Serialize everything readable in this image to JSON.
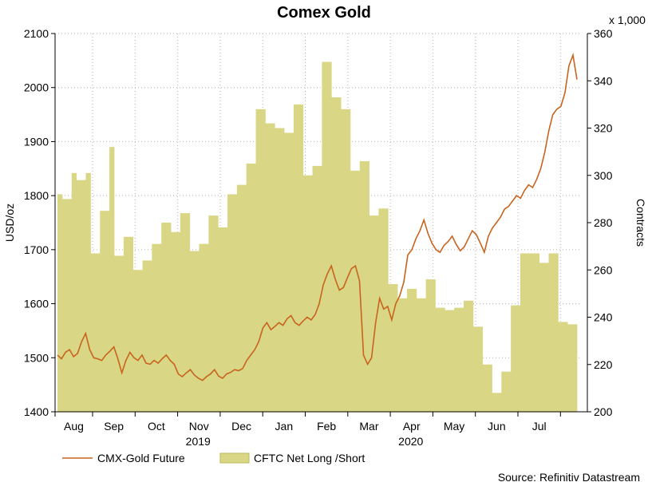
{
  "chart_data": {
    "type": "bar+line",
    "title": "Comex Gold",
    "source": "Source: Refinitiv Datastream",
    "y_left": {
      "label": "USD/oz",
      "ticks": [
        "1400",
        "1500",
        "1600",
        "1700",
        "1800",
        "1900",
        "2000",
        "2100"
      ],
      "range": [
        1400,
        2100
      ]
    },
    "y_right": {
      "label": "Contracts",
      "multiplier": "x 1,000",
      "ticks": [
        "200",
        "220",
        "240",
        "260",
        "280",
        "300",
        "320",
        "340",
        "360"
      ],
      "range": [
        200,
        360
      ]
    },
    "x": {
      "months": [
        "Aug",
        "Sep",
        "Oct",
        "Nov",
        "Dec",
        "Jan",
        "Feb",
        "Mar",
        "Apr",
        "May",
        "Jun",
        "Jul"
      ],
      "years": [
        "2019",
        "2020"
      ]
    },
    "legend": [
      "CMX-Gold Future",
      "CFTC Net Long /Short"
    ],
    "colors": {
      "line": "#c8641e",
      "bars": "#d9d685",
      "bars_edge": "#bdb95a",
      "grid": "#b4b4b4"
    },
    "series": [
      {
        "name": "CFTC Net Long /Short",
        "type": "bar",
        "axis": "right",
        "values": [
          292,
          290,
          290,
          301,
          298,
          298,
          301,
          267,
          267,
          285,
          285,
          312,
          266,
          266,
          274,
          274,
          260,
          260,
          264,
          264,
          271,
          271,
          280,
          280,
          276,
          276,
          284,
          284,
          268,
          268,
          271,
          271,
          283,
          283,
          278,
          278,
          292,
          292,
          296,
          296,
          305,
          305,
          328,
          328,
          322,
          322,
          320,
          320,
          318,
          318,
          330,
          330,
          300,
          300,
          304,
          304,
          348,
          348,
          333,
          333,
          328,
          328,
          302,
          302,
          306,
          306,
          283,
          283,
          286,
          286,
          254,
          254,
          248,
          248,
          252,
          252,
          248,
          248,
          256,
          256,
          244,
          244,
          243,
          243,
          244,
          244,
          247,
          247,
          236,
          236,
          220,
          220,
          208,
          208,
          217,
          217,
          245,
          245,
          267,
          267,
          267,
          267,
          263,
          263,
          267,
          267,
          238,
          238,
          237,
          237
        ]
      },
      {
        "name": "CMX-Gold Future",
        "type": "line",
        "axis": "left",
        "values": [
          1505,
          1498,
          1510,
          1515,
          1502,
          1508,
          1530,
          1545,
          1515,
          1500,
          1498,
          1495,
          1505,
          1512,
          1520,
          1498,
          1472,
          1495,
          1510,
          1500,
          1495,
          1505,
          1490,
          1488,
          1495,
          1490,
          1498,
          1505,
          1495,
          1488,
          1470,
          1465,
          1472,
          1478,
          1468,
          1462,
          1458,
          1465,
          1470,
          1478,
          1466,
          1462,
          1470,
          1473,
          1478,
          1476,
          1480,
          1495,
          1505,
          1515,
          1530,
          1555,
          1565,
          1552,
          1558,
          1565,
          1560,
          1572,
          1578,
          1565,
          1560,
          1568,
          1575,
          1570,
          1580,
          1600,
          1635,
          1655,
          1670,
          1645,
          1625,
          1630,
          1648,
          1665,
          1670,
          1642,
          1505,
          1488,
          1500,
          1565,
          1610,
          1590,
          1595,
          1570,
          1600,
          1615,
          1640,
          1690,
          1700,
          1720,
          1735,
          1755,
          1730,
          1712,
          1700,
          1695,
          1708,
          1715,
          1725,
          1710,
          1698,
          1705,
          1720,
          1735,
          1728,
          1712,
          1695,
          1725,
          1740,
          1750,
          1760,
          1775,
          1780,
          1790,
          1800,
          1795,
          1810,
          1820,
          1815,
          1830,
          1850,
          1880,
          1920,
          1950,
          1960,
          1965,
          1990,
          2040,
          2060,
          2015
        ]
      }
    ]
  }
}
